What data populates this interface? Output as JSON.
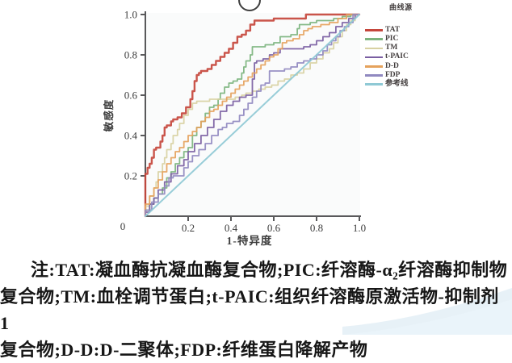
{
  "decorations": {
    "top_glyph": "partial-circle",
    "corner": "light-blue-wave"
  },
  "legend": {
    "title": "曲线源"
  },
  "caption": {
    "line1": "注:TAT:凝血酶抗凝血酶复合物;PIC:纤溶酶-α₂纤溶酶抑制物",
    "line2": "复合物;TM:血栓调节蛋白;t-PAIC:组织纤溶酶原激活物-抑制剂 1",
    "line3": "复合物;D-D:D-二聚体;FDP:纤维蛋白降解产物"
  },
  "chart_data": {
    "type": "line",
    "subtype": "roc-curve",
    "title": "",
    "xlabel": "1-特异度",
    "ylabel": "敏感度",
    "xlim": [
      0,
      1
    ],
    "ylim": [
      0,
      1
    ],
    "grid": false,
    "legend_title": "曲线源",
    "legend_position": "right-top",
    "origin_label": "0",
    "x_ticks": [
      0.2,
      0.4,
      0.6,
      0.8,
      1.0
    ],
    "y_ticks": [
      0.2,
      0.4,
      0.6,
      0.8,
      1.0
    ],
    "x_tick_labels": [
      "0.2",
      "0.4",
      "0.6",
      "0.8",
      "1.0"
    ],
    "y_tick_labels": [
      "0.2",
      "0.4",
      "0.6",
      "0.8",
      "1.0"
    ],
    "series": [
      {
        "name": "TAT",
        "color": "#c5463c",
        "width": 2.4,
        "step": true,
        "points": [
          [
            0,
            0
          ],
          [
            0.01,
            0.21
          ],
          [
            0.02,
            0.24
          ],
          [
            0.03,
            0.26
          ],
          [
            0.04,
            0.29
          ],
          [
            0.05,
            0.33
          ],
          [
            0.07,
            0.34
          ],
          [
            0.08,
            0.37
          ],
          [
            0.09,
            0.4
          ],
          [
            0.1,
            0.44
          ],
          [
            0.12,
            0.45
          ],
          [
            0.13,
            0.47
          ],
          [
            0.15,
            0.48
          ],
          [
            0.17,
            0.49
          ],
          [
            0.19,
            0.51
          ],
          [
            0.21,
            0.54
          ],
          [
            0.22,
            0.58
          ],
          [
            0.23,
            0.62
          ],
          [
            0.24,
            0.67
          ],
          [
            0.25,
            0.7
          ],
          [
            0.26,
            0.71
          ],
          [
            0.29,
            0.72
          ],
          [
            0.31,
            0.73
          ],
          [
            0.33,
            0.75
          ],
          [
            0.35,
            0.77
          ],
          [
            0.37,
            0.79
          ],
          [
            0.39,
            0.81
          ],
          [
            0.41,
            0.83
          ],
          [
            0.43,
            0.86
          ],
          [
            0.45,
            0.89
          ],
          [
            0.47,
            0.9
          ],
          [
            0.49,
            0.92
          ],
          [
            0.51,
            0.95
          ],
          [
            0.52,
            0.97
          ],
          [
            0.57,
            0.97
          ],
          [
            0.6,
            0.97
          ],
          [
            0.62,
            0.98
          ],
          [
            0.7,
            0.98
          ],
          [
            0.75,
            0.98
          ],
          [
            0.77,
            1.0
          ],
          [
            1,
            1
          ]
        ]
      },
      {
        "name": "PIC",
        "color": "#7cb47e",
        "width": 1.8,
        "step": true,
        "points": [
          [
            0,
            0
          ],
          [
            0.02,
            0.03
          ],
          [
            0.04,
            0.06
          ],
          [
            0.06,
            0.09
          ],
          [
            0.08,
            0.11
          ],
          [
            0.1,
            0.14
          ],
          [
            0.12,
            0.19
          ],
          [
            0.14,
            0.22
          ],
          [
            0.16,
            0.26
          ],
          [
            0.18,
            0.29
          ],
          [
            0.2,
            0.32
          ],
          [
            0.22,
            0.34
          ],
          [
            0.24,
            0.4
          ],
          [
            0.26,
            0.44
          ],
          [
            0.28,
            0.47
          ],
          [
            0.3,
            0.51
          ],
          [
            0.32,
            0.54
          ],
          [
            0.34,
            0.55
          ],
          [
            0.35,
            0.58
          ],
          [
            0.37,
            0.61
          ],
          [
            0.39,
            0.64
          ],
          [
            0.41,
            0.66
          ],
          [
            0.43,
            0.67
          ],
          [
            0.45,
            0.68
          ],
          [
            0.46,
            0.71
          ],
          [
            0.47,
            0.74
          ],
          [
            0.49,
            0.77
          ],
          [
            0.5,
            0.8
          ],
          [
            0.51,
            0.84
          ],
          [
            0.56,
            0.84
          ],
          [
            0.6,
            0.85
          ],
          [
            0.63,
            0.86
          ],
          [
            0.64,
            0.89
          ],
          [
            0.68,
            0.89
          ],
          [
            0.71,
            0.9
          ],
          [
            0.72,
            0.93
          ],
          [
            0.73,
            0.95
          ],
          [
            0.77,
            0.95
          ],
          [
            0.8,
            0.96
          ],
          [
            0.84,
            0.97
          ],
          [
            0.88,
            0.97
          ],
          [
            0.92,
            0.98
          ],
          [
            0.96,
            0.99
          ],
          [
            1,
            1
          ]
        ]
      },
      {
        "name": "TM",
        "color": "#d8d1a2",
        "width": 1.8,
        "step": true,
        "points": [
          [
            0,
            0
          ],
          [
            0.02,
            0.05
          ],
          [
            0.04,
            0.1
          ],
          [
            0.05,
            0.14
          ],
          [
            0.06,
            0.17
          ],
          [
            0.08,
            0.22
          ],
          [
            0.09,
            0.26
          ],
          [
            0.1,
            0.29
          ],
          [
            0.12,
            0.33
          ],
          [
            0.13,
            0.36
          ],
          [
            0.15,
            0.4
          ],
          [
            0.16,
            0.43
          ],
          [
            0.18,
            0.46
          ],
          [
            0.2,
            0.5
          ],
          [
            0.22,
            0.53
          ],
          [
            0.24,
            0.56
          ],
          [
            0.26,
            0.57
          ],
          [
            0.3,
            0.57
          ],
          [
            0.34,
            0.58
          ],
          [
            0.38,
            0.58
          ],
          [
            0.42,
            0.58
          ],
          [
            0.45,
            0.59
          ],
          [
            0.47,
            0.6
          ],
          [
            0.5,
            0.61
          ],
          [
            0.53,
            0.62
          ],
          [
            0.56,
            0.63
          ],
          [
            0.59,
            0.64
          ],
          [
            0.62,
            0.65
          ],
          [
            0.65,
            0.67
          ],
          [
            0.68,
            0.68
          ],
          [
            0.71,
            0.7
          ],
          [
            0.74,
            0.71
          ],
          [
            0.77,
            0.73
          ],
          [
            0.8,
            0.76
          ],
          [
            0.83,
            0.78
          ],
          [
            0.86,
            0.81
          ],
          [
            0.88,
            0.83
          ],
          [
            0.9,
            0.86
          ],
          [
            0.92,
            0.89
          ],
          [
            0.94,
            0.92
          ],
          [
            0.96,
            0.95
          ],
          [
            0.98,
            0.97
          ],
          [
            1,
            1
          ]
        ]
      },
      {
        "name": "t-PAIC",
        "color": "#7a5ea2",
        "width": 1.8,
        "step": true,
        "points": [
          [
            0,
            0
          ],
          [
            0.02,
            0.02
          ],
          [
            0.04,
            0.06
          ],
          [
            0.06,
            0.09
          ],
          [
            0.09,
            0.13
          ],
          [
            0.12,
            0.17
          ],
          [
            0.15,
            0.21
          ],
          [
            0.18,
            0.25
          ],
          [
            0.2,
            0.28
          ],
          [
            0.23,
            0.32
          ],
          [
            0.26,
            0.36
          ],
          [
            0.29,
            0.4
          ],
          [
            0.32,
            0.44
          ],
          [
            0.35,
            0.48
          ],
          [
            0.38,
            0.52
          ],
          [
            0.41,
            0.55
          ],
          [
            0.44,
            0.57
          ],
          [
            0.47,
            0.59
          ],
          [
            0.5,
            0.6
          ],
          [
            0.51,
            0.68
          ],
          [
            0.52,
            0.76
          ],
          [
            0.55,
            0.77
          ],
          [
            0.58,
            0.78
          ],
          [
            0.6,
            0.8
          ],
          [
            0.63,
            0.81
          ],
          [
            0.66,
            0.83
          ],
          [
            0.7,
            0.83
          ],
          [
            0.74,
            0.83
          ],
          [
            0.77,
            0.84
          ],
          [
            0.8,
            0.85
          ],
          [
            0.83,
            0.87
          ],
          [
            0.86,
            0.89
          ],
          [
            0.89,
            0.91
          ],
          [
            0.92,
            0.94
          ],
          [
            0.95,
            0.96
          ],
          [
            0.98,
            0.98
          ],
          [
            1,
            1
          ]
        ]
      },
      {
        "name": "D-D",
        "color": "#e5a25c",
        "width": 1.8,
        "step": true,
        "points": [
          [
            0,
            0
          ],
          [
            0.02,
            0.06
          ],
          [
            0.04,
            0.1
          ],
          [
            0.06,
            0.14
          ],
          [
            0.08,
            0.18
          ],
          [
            0.1,
            0.22
          ],
          [
            0.12,
            0.26
          ],
          [
            0.14,
            0.29
          ],
          [
            0.16,
            0.32
          ],
          [
            0.18,
            0.34
          ],
          [
            0.2,
            0.37
          ],
          [
            0.22,
            0.4
          ],
          [
            0.24,
            0.42
          ],
          [
            0.26,
            0.44
          ],
          [
            0.28,
            0.47
          ],
          [
            0.3,
            0.49
          ],
          [
            0.32,
            0.52
          ],
          [
            0.34,
            0.53
          ],
          [
            0.36,
            0.55
          ],
          [
            0.38,
            0.57
          ],
          [
            0.4,
            0.59
          ],
          [
            0.42,
            0.61
          ],
          [
            0.44,
            0.63
          ],
          [
            0.46,
            0.65
          ],
          [
            0.48,
            0.67
          ],
          [
            0.5,
            0.69
          ],
          [
            0.52,
            0.71
          ],
          [
            0.54,
            0.73
          ],
          [
            0.56,
            0.75
          ],
          [
            0.58,
            0.77
          ],
          [
            0.6,
            0.79
          ],
          [
            0.62,
            0.8
          ],
          [
            0.64,
            0.83
          ],
          [
            0.66,
            0.86
          ],
          [
            0.69,
            0.87
          ],
          [
            0.72,
            0.88
          ],
          [
            0.74,
            0.9
          ],
          [
            0.76,
            0.92
          ],
          [
            0.78,
            0.93
          ],
          [
            0.82,
            0.94
          ],
          [
            0.86,
            0.95
          ],
          [
            0.9,
            0.96
          ],
          [
            0.94,
            0.98
          ],
          [
            1,
            1
          ]
        ]
      },
      {
        "name": "FDP",
        "color": "#9089c0",
        "width": 1.8,
        "step": true,
        "points": [
          [
            0,
            0
          ],
          [
            0.03,
            0.03
          ],
          [
            0.06,
            0.07
          ],
          [
            0.09,
            0.11
          ],
          [
            0.11,
            0.15
          ],
          [
            0.13,
            0.19
          ],
          [
            0.15,
            0.2
          ],
          [
            0.18,
            0.2
          ],
          [
            0.2,
            0.24
          ],
          [
            0.22,
            0.27
          ],
          [
            0.25,
            0.3
          ],
          [
            0.28,
            0.33
          ],
          [
            0.31,
            0.36
          ],
          [
            0.34,
            0.4
          ],
          [
            0.36,
            0.43
          ],
          [
            0.38,
            0.44
          ],
          [
            0.41,
            0.46
          ],
          [
            0.44,
            0.47
          ],
          [
            0.46,
            0.5
          ],
          [
            0.48,
            0.53
          ],
          [
            0.5,
            0.56
          ],
          [
            0.52,
            0.59
          ],
          [
            0.54,
            0.62
          ],
          [
            0.56,
            0.65
          ],
          [
            0.58,
            0.66
          ],
          [
            0.59,
            0.72
          ],
          [
            0.62,
            0.72
          ],
          [
            0.65,
            0.72
          ],
          [
            0.68,
            0.73
          ],
          [
            0.71,
            0.74
          ],
          [
            0.74,
            0.76
          ],
          [
            0.77,
            0.77
          ],
          [
            0.8,
            0.78
          ],
          [
            0.83,
            0.8
          ],
          [
            0.85,
            0.82
          ],
          [
            0.87,
            0.85
          ],
          [
            0.89,
            0.87
          ],
          [
            0.91,
            0.89
          ],
          [
            0.93,
            0.92
          ],
          [
            0.95,
            0.94
          ],
          [
            0.97,
            0.96
          ],
          [
            1,
            1
          ]
        ]
      },
      {
        "name": "参考线",
        "color": "#8fc9d5",
        "width": 2.0,
        "step": false,
        "points": [
          [
            0,
            0
          ],
          [
            1,
            1
          ]
        ]
      }
    ]
  }
}
